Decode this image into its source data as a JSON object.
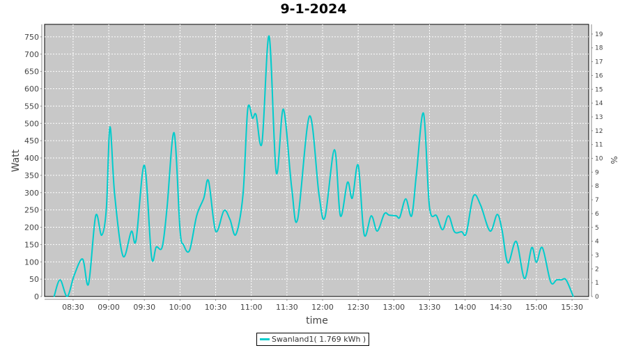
{
  "chart_data": {
    "type": "line",
    "title": "9-1-2024",
    "xlabel": "time",
    "ylabel": "Watt",
    "y2label": "%",
    "xlim": [
      "08:06",
      "15:44"
    ],
    "ylim": [
      0,
      786
    ],
    "y2lim": [
      0,
      19.7
    ],
    "x_ticks": [
      "08:30",
      "09:00",
      "09:30",
      "10:00",
      "10:30",
      "11:00",
      "11:30",
      "12:00",
      "12:30",
      "13:00",
      "13:30",
      "14:00",
      "14:30",
      "15:00",
      "15:30"
    ],
    "y_ticks": [
      0,
      50,
      100,
      150,
      200,
      250,
      300,
      350,
      400,
      450,
      500,
      550,
      600,
      650,
      700,
      750
    ],
    "y2_ticks": [
      0,
      1,
      2,
      3,
      4,
      5,
      6,
      7,
      8,
      9,
      10,
      11,
      12,
      13,
      14,
      15,
      16,
      17,
      18,
      19
    ],
    "grid": true,
    "legend": "bottom",
    "background": "#c8c8c8",
    "series": [
      {
        "name": "Swanland1( 1.769 kWh )",
        "color": "#00cccc",
        "x": [
          "08:14",
          "08:19",
          "08:25",
          "08:31",
          "08:38",
          "08:43",
          "08:49",
          "08:54",
          "08:58",
          "09:01",
          "09:05",
          "09:12",
          "09:19",
          "09:23",
          "09:30",
          "09:36",
          "09:40",
          "09:45",
          "09:49",
          "09:55",
          "10:00",
          "10:03",
          "10:08",
          "10:14",
          "10:20",
          "10:24",
          "10:30",
          "10:37",
          "10:42",
          "10:47",
          "10:53",
          "10:57",
          "11:01",
          "11:04",
          "11:09",
          "11:15",
          "11:21",
          "11:27",
          "11:34",
          "11:39",
          "11:49",
          "11:57",
          "12:02",
          "12:10",
          "12:15",
          "12:21",
          "12:25",
          "12:30",
          "12:35",
          "12:41",
          "12:46",
          "12:52",
          "12:56",
          "13:02",
          "13:05",
          "13:10",
          "13:15",
          "13:19",
          "13:25",
          "13:30",
          "13:36",
          "13:41",
          "13:46",
          "13:51",
          "13:57",
          "14:01",
          "14:07",
          "14:13",
          "14:21",
          "14:27",
          "14:31",
          "14:36",
          "14:43",
          "14:50",
          "14:56",
          "15:00",
          "15:05",
          "15:12",
          "15:17",
          "15:21",
          "15:25",
          "15:31"
        ],
        "values": [
          0,
          48,
          0,
          62,
          108,
          36,
          233,
          177,
          254,
          490,
          294,
          117,
          188,
          163,
          379,
          115,
          143,
          143,
          254,
          473,
          193,
          149,
          133,
          233,
          284,
          334,
          189,
          248,
          223,
          179,
          294,
          541,
          515,
          525,
          444,
          752,
          358,
          541,
          314,
          223,
          521,
          294,
          229,
          424,
          233,
          330,
          284,
          379,
          179,
          233,
          189,
          239,
          235,
          233,
          229,
          282,
          233,
          354,
          529,
          258,
          233,
          193,
          233,
          187,
          187,
          183,
          290,
          264,
          189,
          237,
          193,
          97,
          159,
          52,
          141,
          99,
          141,
          42,
          48,
          48,
          48,
          0
        ]
      }
    ]
  }
}
